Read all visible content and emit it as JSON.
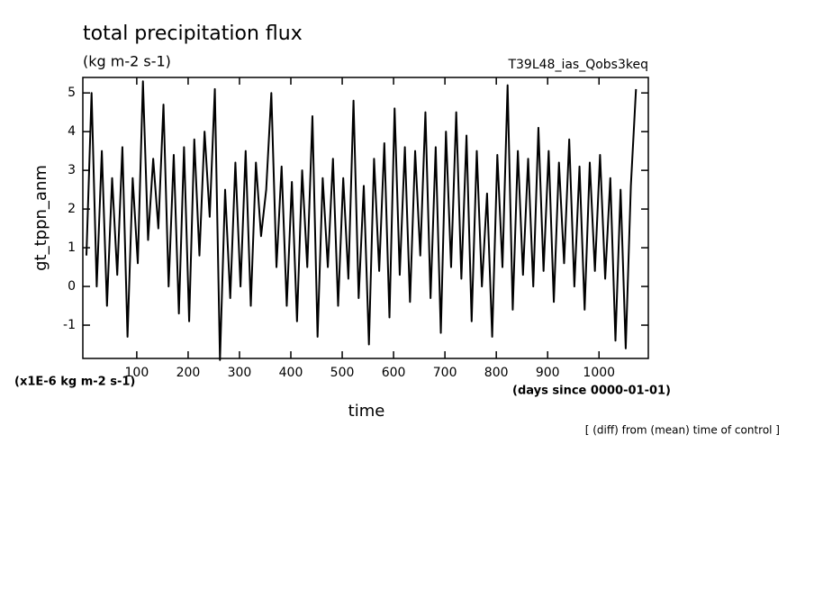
{
  "chart_data": {
    "type": "line",
    "title": "total precipitation flux",
    "subtitle": "(kg m-2 s-1)",
    "run_label": "T39L48_ias_Qobs3keq",
    "ylabel": "gt_tppn_anm",
    "yunit": "(x1E-6 kg m-2 s-1)",
    "xlabel": "time",
    "xunit": "(days since 0000-01-01)",
    "note": "[ (diff) from (mean) time of control ]",
    "color": "#000000",
    "xlim": [
      -5,
      1096
    ],
    "ylim": [
      -1.86,
      5.4
    ],
    "xticks": [
      100,
      200,
      300,
      400,
      500,
      600,
      700,
      800,
      900,
      1000
    ],
    "yticks": [
      -1,
      0,
      1,
      2,
      3,
      4,
      5
    ],
    "x": [
      2,
      12,
      22,
      32,
      42,
      52,
      62,
      72,
      82,
      92,
      102,
      112,
      122,
      132,
      142,
      152,
      162,
      172,
      182,
      192,
      202,
      212,
      222,
      232,
      242,
      252,
      262,
      272,
      282,
      292,
      302,
      312,
      322,
      332,
      342,
      352,
      362,
      372,
      382,
      392,
      402,
      412,
      422,
      432,
      442,
      452,
      462,
      472,
      482,
      492,
      502,
      512,
      522,
      532,
      542,
      552,
      562,
      572,
      582,
      592,
      602,
      612,
      622,
      632,
      642,
      652,
      662,
      672,
      682,
      692,
      702,
      712,
      722,
      732,
      742,
      752,
      762,
      772,
      782,
      792,
      802,
      812,
      822,
      832,
      842,
      852,
      862,
      872,
      882,
      892,
      902,
      912,
      922,
      932,
      942,
      952,
      962,
      972,
      982,
      992,
      1002,
      1012,
      1022,
      1032,
      1042,
      1052,
      1062,
      1072
    ],
    "values": [
      0.8,
      5.0,
      0.0,
      3.5,
      -0.5,
      2.8,
      0.3,
      3.6,
      -1.3,
      2.8,
      0.6,
      5.3,
      1.2,
      3.3,
      1.5,
      4.7,
      0.0,
      3.4,
      -0.7,
      3.6,
      -0.9,
      3.8,
      0.8,
      4.0,
      1.8,
      5.1,
      -1.9,
      2.5,
      -0.3,
      3.2,
      0.0,
      3.5,
      -0.5,
      3.2,
      1.3,
      2.5,
      5.0,
      0.5,
      3.1,
      -0.5,
      2.7,
      -0.9,
      3.0,
      0.5,
      4.4,
      -1.3,
      2.8,
      0.5,
      3.3,
      -0.5,
      2.8,
      0.2,
      4.8,
      -0.3,
      2.6,
      -1.5,
      3.3,
      0.4,
      3.7,
      -0.8,
      4.6,
      0.3,
      3.6,
      -0.4,
      3.5,
      0.8,
      4.5,
      -0.3,
      3.6,
      -1.2,
      4.0,
      0.5,
      4.5,
      0.2,
      3.9,
      -0.9,
      3.5,
      0.0,
      2.4,
      -1.3,
      3.4,
      0.5,
      5.2,
      -0.6,
      3.5,
      0.3,
      3.3,
      0.0,
      4.1,
      0.4,
      3.5,
      -0.4,
      3.2,
      0.6,
      3.8,
      0.0,
      3.1,
      -0.6,
      3.2,
      0.4,
      3.4,
      0.2,
      2.8,
      -1.4,
      2.5,
      -1.6,
      2.6,
      5.1
    ]
  }
}
